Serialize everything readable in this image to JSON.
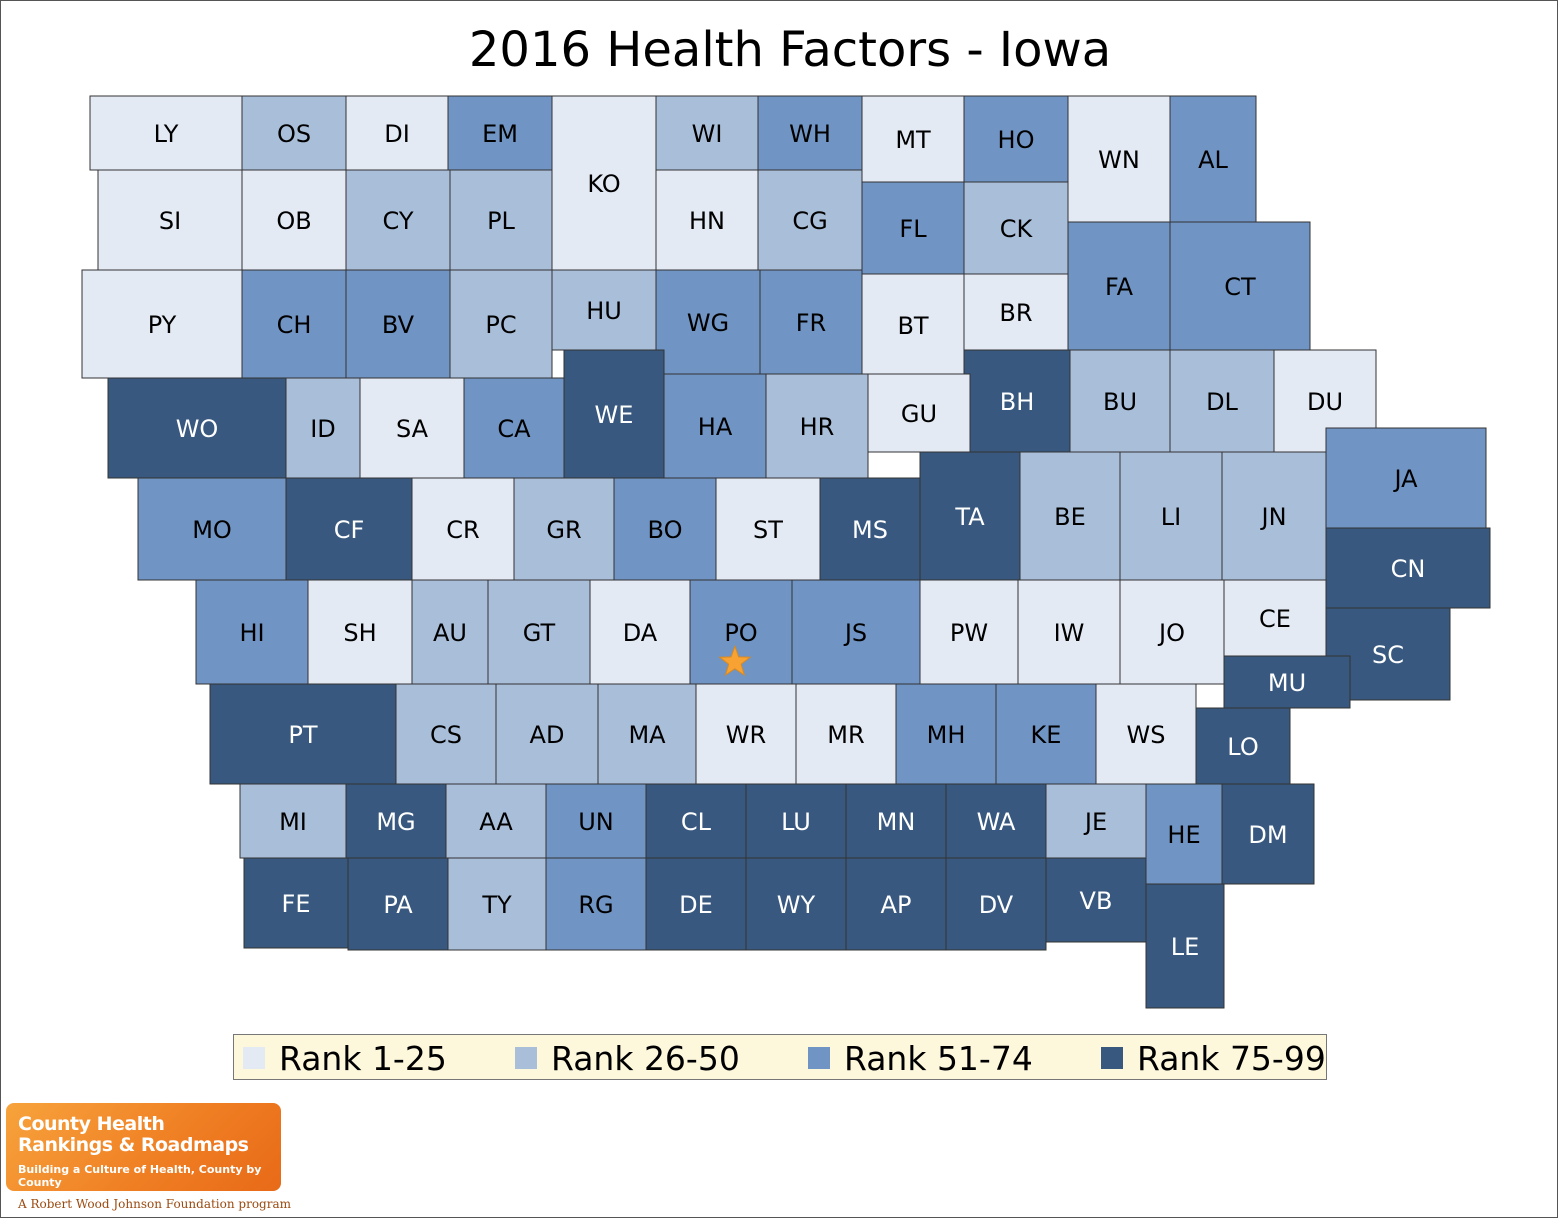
{
  "title": "2016 Health Factors - Iowa",
  "colors": {
    "rank1": "#e3eaf4",
    "rank2": "#a9bed9",
    "rank3": "#7094c3",
    "rank4": "#38587f"
  },
  "legend": [
    {
      "label": "Rank 1-25",
      "tier": 1
    },
    {
      "label": "Rank 26-50",
      "tier": 2
    },
    {
      "label": "Rank 51-74",
      "tier": 3
    },
    {
      "label": "Rank 75-99",
      "tier": 4
    }
  ],
  "counties": [
    {
      "code": "LY",
      "tier": 1
    },
    {
      "code": "OS",
      "tier": 2
    },
    {
      "code": "DI",
      "tier": 1
    },
    {
      "code": "EM",
      "tier": 3
    },
    {
      "code": "KO",
      "tier": 1
    },
    {
      "code": "WI",
      "tier": 2
    },
    {
      "code": "WH",
      "tier": 3
    },
    {
      "code": "MT",
      "tier": 1
    },
    {
      "code": "HO",
      "tier": 3
    },
    {
      "code": "WN",
      "tier": 1
    },
    {
      "code": "AL",
      "tier": 3
    },
    {
      "code": "SI",
      "tier": 1
    },
    {
      "code": "OB",
      "tier": 1
    },
    {
      "code": "CY",
      "tier": 2
    },
    {
      "code": "PL",
      "tier": 2
    },
    {
      "code": "HN",
      "tier": 1
    },
    {
      "code": "CG",
      "tier": 2
    },
    {
      "code": "FL",
      "tier": 3
    },
    {
      "code": "CK",
      "tier": 2
    },
    {
      "code": "FA",
      "tier": 3
    },
    {
      "code": "CT",
      "tier": 3
    },
    {
      "code": "PY",
      "tier": 1
    },
    {
      "code": "CH",
      "tier": 3
    },
    {
      "code": "BV",
      "tier": 3
    },
    {
      "code": "PC",
      "tier": 2
    },
    {
      "code": "HU",
      "tier": 2
    },
    {
      "code": "WG",
      "tier": 3
    },
    {
      "code": "FR",
      "tier": 3
    },
    {
      "code": "BT",
      "tier": 1
    },
    {
      "code": "BR",
      "tier": 1
    },
    {
      "code": "BH",
      "tier": 4
    },
    {
      "code": "BU",
      "tier": 2
    },
    {
      "code": "DL",
      "tier": 2
    },
    {
      "code": "DU",
      "tier": 1
    },
    {
      "code": "WO",
      "tier": 4
    },
    {
      "code": "ID",
      "tier": 2
    },
    {
      "code": "SA",
      "tier": 1
    },
    {
      "code": "CA",
      "tier": 3
    },
    {
      "code": "WE",
      "tier": 4
    },
    {
      "code": "HA",
      "tier": 3
    },
    {
      "code": "HR",
      "tier": 2
    },
    {
      "code": "GU",
      "tier": 1
    },
    {
      "code": "TA",
      "tier": 4
    },
    {
      "code": "BE",
      "tier": 2
    },
    {
      "code": "LI",
      "tier": 2
    },
    {
      "code": "JN",
      "tier": 2
    },
    {
      "code": "JA",
      "tier": 3
    },
    {
      "code": "MO",
      "tier": 3
    },
    {
      "code": "CF",
      "tier": 4
    },
    {
      "code": "CR",
      "tier": 1
    },
    {
      "code": "GR",
      "tier": 2
    },
    {
      "code": "BO",
      "tier": 3
    },
    {
      "code": "ST",
      "tier": 1
    },
    {
      "code": "MS",
      "tier": 4
    },
    {
      "code": "CN",
      "tier": 4
    },
    {
      "code": "HI",
      "tier": 3
    },
    {
      "code": "SH",
      "tier": 1
    },
    {
      "code": "AU",
      "tier": 2
    },
    {
      "code": "GT",
      "tier": 2
    },
    {
      "code": "DA",
      "tier": 1
    },
    {
      "code": "PO",
      "tier": 3
    },
    {
      "code": "JS",
      "tier": 3
    },
    {
      "code": "PW",
      "tier": 1
    },
    {
      "code": "IW",
      "tier": 1
    },
    {
      "code": "JO",
      "tier": 1
    },
    {
      "code": "CE",
      "tier": 1
    },
    {
      "code": "SC",
      "tier": 4
    },
    {
      "code": "MU",
      "tier": 4
    },
    {
      "code": "PT",
      "tier": 4
    },
    {
      "code": "CS",
      "tier": 2
    },
    {
      "code": "AD",
      "tier": 2
    },
    {
      "code": "MA",
      "tier": 2
    },
    {
      "code": "WR",
      "tier": 1
    },
    {
      "code": "MR",
      "tier": 1
    },
    {
      "code": "MH",
      "tier": 3
    },
    {
      "code": "KE",
      "tier": 3
    },
    {
      "code": "WS",
      "tier": 1
    },
    {
      "code": "LO",
      "tier": 4
    },
    {
      "code": "MI",
      "tier": 2
    },
    {
      "code": "MG",
      "tier": 4
    },
    {
      "code": "AA",
      "tier": 2
    },
    {
      "code": "UN",
      "tier": 3
    },
    {
      "code": "CL",
      "tier": 4
    },
    {
      "code": "LU",
      "tier": 4
    },
    {
      "code": "MN",
      "tier": 4
    },
    {
      "code": "WA",
      "tier": 4
    },
    {
      "code": "JE",
      "tier": 2
    },
    {
      "code": "HE",
      "tier": 3
    },
    {
      "code": "DM",
      "tier": 4
    },
    {
      "code": "FE",
      "tier": 4
    },
    {
      "code": "PA",
      "tier": 4
    },
    {
      "code": "TY",
      "tier": 2
    },
    {
      "code": "RG",
      "tier": 3
    },
    {
      "code": "DE",
      "tier": 4
    },
    {
      "code": "WY",
      "tier": 4
    },
    {
      "code": "AP",
      "tier": 4
    },
    {
      "code": "DV",
      "tier": 4
    },
    {
      "code": "VB",
      "tier": 4
    },
    {
      "code": "LE",
      "tier": 4
    }
  ],
  "marker": {
    "county": "PO",
    "icon": "star-icon",
    "color": "#f7a233"
  },
  "logo": {
    "line1": "County Health",
    "line2": "Rankings & Roadmaps",
    "tagline": "Building a Culture of Health, County by County"
  },
  "footer": "A Robert Wood Johnson Foundation program"
}
